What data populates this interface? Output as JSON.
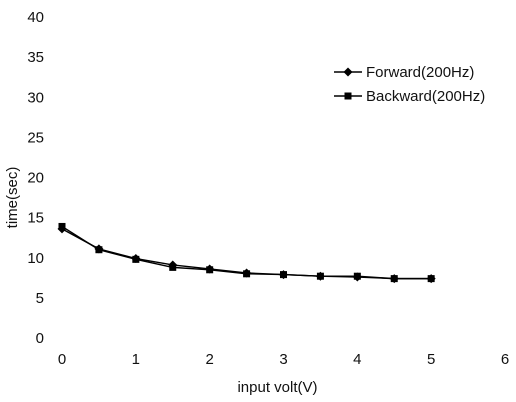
{
  "chart_data": {
    "type": "line",
    "title": "",
    "xlabel": "input volt(V)",
    "ylabel": "time(sec)",
    "xlim": [
      0,
      6
    ],
    "ylim": [
      0,
      40
    ],
    "xticks": [
      0,
      1,
      2,
      3,
      4,
      5,
      6
    ],
    "yticks": [
      0,
      5,
      10,
      15,
      20,
      25,
      30,
      35,
      40
    ],
    "grid": false,
    "legend_position": "top-right",
    "series": [
      {
        "name": "Forward(200Hz)",
        "marker": "diamond",
        "color": "#000000",
        "x": [
          0,
          0.5,
          1,
          1.5,
          2,
          2.5,
          3,
          3.5,
          4,
          4.5,
          5
        ],
        "y": [
          13.6,
          11.1,
          9.9,
          9.1,
          8.6,
          8.1,
          7.9,
          7.7,
          7.6,
          7.4,
          7.4
        ]
      },
      {
        "name": "Backward(200Hz)",
        "marker": "square",
        "color": "#000000",
        "x": [
          0,
          0.5,
          1,
          1.5,
          2,
          2.5,
          3,
          3.5,
          4,
          4.5,
          5
        ],
        "y": [
          13.9,
          11.0,
          9.8,
          8.8,
          8.5,
          8.0,
          7.9,
          7.7,
          7.7,
          7.4,
          7.4
        ]
      }
    ]
  }
}
